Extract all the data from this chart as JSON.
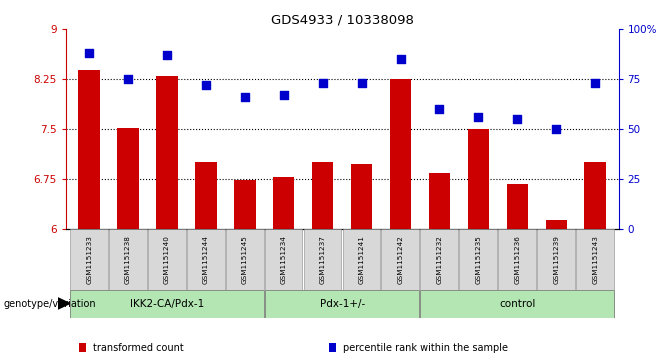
{
  "title": "GDS4933 / 10338098",
  "samples": [
    "GSM1151233",
    "GSM1151238",
    "GSM1151240",
    "GSM1151244",
    "GSM1151245",
    "GSM1151234",
    "GSM1151237",
    "GSM1151241",
    "GSM1151242",
    "GSM1151232",
    "GSM1151235",
    "GSM1151236",
    "GSM1151239",
    "GSM1151243"
  ],
  "transformed_count": [
    8.38,
    7.52,
    8.3,
    7.0,
    6.73,
    6.78,
    7.0,
    6.97,
    8.25,
    6.83,
    7.5,
    6.67,
    6.13,
    7.0
  ],
  "percentile_rank": [
    88,
    75,
    87,
    72,
    66,
    67,
    73,
    73,
    85,
    60,
    56,
    55,
    50,
    73
  ],
  "groups": [
    {
      "label": "IKK2-CA/Pdx-1",
      "start": 0,
      "end": 4
    },
    {
      "label": "Pdx-1+/-",
      "start": 5,
      "end": 8
    },
    {
      "label": "control",
      "start": 9,
      "end": 13
    }
  ],
  "group_color": "#b3e6b3",
  "ylim_left": [
    6,
    9
  ],
  "ylim_right": [
    0,
    100
  ],
  "yticks_left": [
    6,
    6.75,
    7.5,
    8.25,
    9
  ],
  "ytick_labels_left": [
    "6",
    "6.75",
    "7.5",
    "8.25",
    "9"
  ],
  "yticks_right_pct": [
    0,
    25,
    50,
    75,
    100
  ],
  "ytick_labels_right": [
    "0",
    "25",
    "50",
    "75",
    "100%"
  ],
  "bar_color": "#cc0000",
  "dot_color": "#0000cc",
  "left_tick_color": "#cc0000",
  "right_tick_color": "#0000cc",
  "xlabel_label": "genotype/variation",
  "legend_items": [
    {
      "color": "#cc0000",
      "label": "transformed count"
    },
    {
      "color": "#0000cc",
      "label": "percentile rank within the sample"
    }
  ],
  "bar_width": 0.55,
  "dot_size": 30
}
